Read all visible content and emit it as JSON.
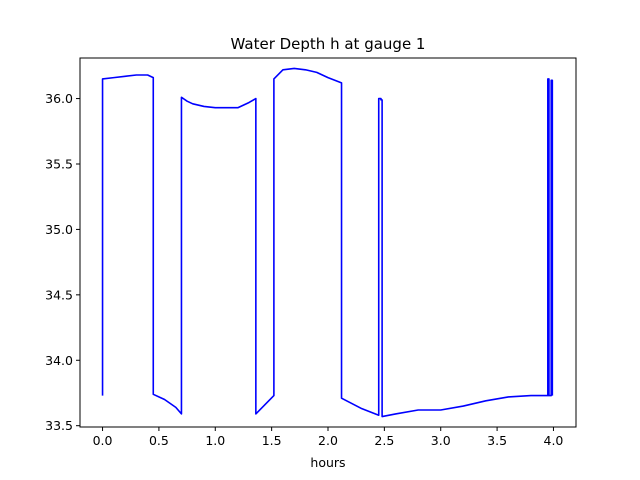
{
  "chart_data": {
    "type": "line",
    "title": "Water Depth h at gauge 1",
    "xlabel": "hours",
    "ylabel": "",
    "xlim": [
      -0.2,
      4.2
    ],
    "ylim": [
      33.49,
      36.31
    ],
    "xticks": [
      0.0,
      0.5,
      1.0,
      1.5,
      2.0,
      2.5,
      3.0,
      3.5,
      4.0
    ],
    "xtick_labels": [
      "0.0",
      "0.5",
      "1.0",
      "1.5",
      "2.0",
      "2.5",
      "3.0",
      "3.5",
      "4.0"
    ],
    "yticks": [
      33.5,
      34.0,
      34.5,
      35.0,
      35.5,
      36.0
    ],
    "ytick_labels": [
      "33.5",
      "34.0",
      "34.5",
      "35.0",
      "35.5",
      "36.0"
    ],
    "grid": false,
    "legend": false,
    "series": [
      {
        "color": "#0000ff",
        "x": [
          0.0,
          0.0,
          0.1,
          0.2,
          0.3,
          0.4,
          0.45,
          0.45,
          0.55,
          0.65,
          0.7,
          0.7,
          0.75,
          0.8,
          0.9,
          1.0,
          1.1,
          1.2,
          1.3,
          1.36,
          1.36,
          1.52,
          1.52,
          1.6,
          1.7,
          1.8,
          1.9,
          2.0,
          2.12,
          2.12,
          2.3,
          2.45,
          2.45,
          2.47,
          2.47,
          2.48,
          2.48,
          2.6,
          2.8,
          3.0,
          3.2,
          3.4,
          3.6,
          3.8,
          3.95,
          3.95,
          3.96,
          3.96,
          3.98,
          3.98,
          3.99,
          3.99
        ],
        "y": [
          33.73,
          36.15,
          36.16,
          36.17,
          36.18,
          36.18,
          36.16,
          33.74,
          33.7,
          33.64,
          33.59,
          36.01,
          35.98,
          35.96,
          35.94,
          35.93,
          35.93,
          35.93,
          35.97,
          36.0,
          33.59,
          33.73,
          36.15,
          36.22,
          36.23,
          36.22,
          36.2,
          36.16,
          36.12,
          33.71,
          33.63,
          33.58,
          36.0,
          36.0,
          35.99,
          35.99,
          33.57,
          33.59,
          33.62,
          33.62,
          33.65,
          33.69,
          33.72,
          33.73,
          33.73,
          36.15,
          36.15,
          33.73,
          33.73,
          36.14,
          36.14,
          33.73
        ]
      }
    ]
  }
}
